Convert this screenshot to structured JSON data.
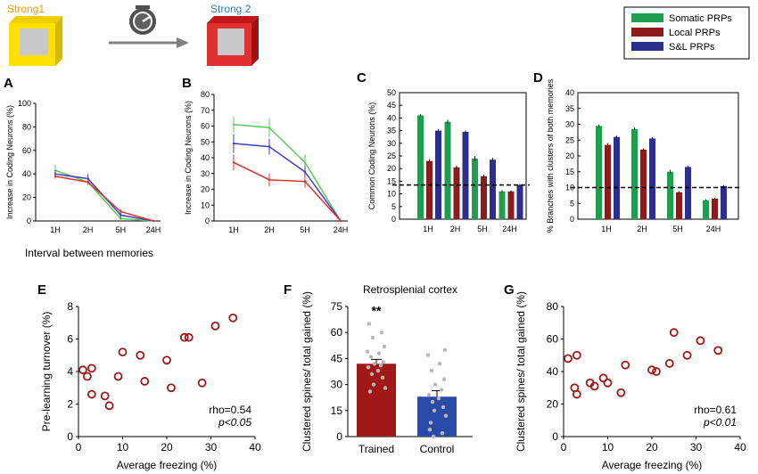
{
  "header": {
    "strong1_label": "Strong1",
    "strong2_label": "Strong 2",
    "clock_icon": "clock-icon",
    "strong1_color": "#e8a000",
    "strong2_color": "#2a7fc0"
  },
  "legend": {
    "items": [
      {
        "label": "Somatic PRPs",
        "color": "#1e9e4e"
      },
      {
        "label": "Local PRPs",
        "color": "#8c1c1c"
      },
      {
        "label": "S&L PRPs",
        "color": "#2b2e8c"
      }
    ]
  },
  "colors": {
    "green": "#5cc85c",
    "blue": "#4040c0",
    "red": "#e03030",
    "dark_red": "#a01818",
    "bar_blue": "#2a4aa8"
  },
  "chart_data": [
    {
      "panel": "A",
      "type": "line",
      "ylabel": "Increase in Coding Neurons (%)",
      "xlabel": "Interval between memories",
      "categories": [
        "1H",
        "2H",
        "5H",
        "24H"
      ],
      "yticks": [
        0,
        20,
        40,
        60,
        80,
        100
      ],
      "ylim": [
        0,
        100
      ],
      "series": [
        {
          "name": "green",
          "values": [
            43,
            33,
            2,
            0
          ],
          "errors": [
            5,
            3,
            2,
            0
          ]
        },
        {
          "name": "blue",
          "values": [
            40,
            36,
            5,
            0
          ],
          "errors": [
            3,
            4,
            3,
            0
          ]
        },
        {
          "name": "red",
          "values": [
            38,
            33,
            8,
            0
          ],
          "errors": [
            2,
            2,
            2,
            0
          ]
        }
      ]
    },
    {
      "panel": "B",
      "type": "line",
      "ylabel": "Increase in Coding Neurons (%)",
      "categories": [
        "1H",
        "2H",
        "5H",
        "24H"
      ],
      "yticks": [
        0,
        10,
        20,
        30,
        40,
        50,
        60,
        70,
        80
      ],
      "ylim": [
        0,
        80
      ],
      "series": [
        {
          "name": "green",
          "values": [
            61,
            59,
            37,
            0
          ],
          "errors": [
            5,
            6,
            5,
            0
          ]
        },
        {
          "name": "blue",
          "values": [
            49,
            47,
            31,
            0
          ],
          "errors": [
            6,
            5,
            4,
            0
          ]
        },
        {
          "name": "red",
          "values": [
            37,
            26,
            25,
            0
          ],
          "errors": [
            5,
            4,
            4,
            0
          ]
        }
      ]
    },
    {
      "panel": "C",
      "type": "bar",
      "ylabel": "Common Coding Neurons (%)",
      "categories": [
        "1H",
        "2H",
        "5H",
        "24H"
      ],
      "yticks": [
        0,
        5,
        10,
        15,
        20,
        25,
        30,
        35,
        40,
        45,
        50
      ],
      "ylim": [
        0,
        50
      ],
      "dashed_line": 13.5,
      "series": [
        {
          "name": "Somatic PRPs",
          "values": [
            41,
            38.5,
            24,
            11
          ],
          "errors": [
            0.5,
            0.8,
            1,
            0.5
          ]
        },
        {
          "name": "Local PRPs",
          "values": [
            23,
            20.5,
            17,
            11
          ],
          "errors": [
            0.7,
            0.8,
            0.7,
            0.4
          ]
        },
        {
          "name": "S&L PRPs",
          "values": [
            35,
            34.5,
            23.5,
            13.5
          ],
          "errors": [
            0.5,
            0.6,
            0.8,
            0.4
          ]
        }
      ]
    },
    {
      "panel": "D",
      "type": "bar",
      "ylabel": "% Branches with clusters of both memories",
      "categories": [
        "1H",
        "2H",
        "5H",
        "24H"
      ],
      "yticks": [
        0,
        5,
        10,
        15,
        20,
        25,
        30,
        35,
        40
      ],
      "ylim": [
        0,
        40
      ],
      "dashed_line": 10,
      "series": [
        {
          "name": "Somatic PRPs",
          "values": [
            29.5,
            28.5,
            15,
            6
          ],
          "errors": [
            0.4,
            0.5,
            0.6,
            0.3
          ]
        },
        {
          "name": "Local PRPs",
          "values": [
            23.5,
            22,
            8.5,
            6.5
          ],
          "errors": [
            0.4,
            0.4,
            0.4,
            0.3
          ]
        },
        {
          "name": "S&L PRPs",
          "values": [
            26,
            25.5,
            16.5,
            10.5
          ],
          "errors": [
            0.4,
            0.4,
            0.4,
            0.3
          ]
        }
      ]
    },
    {
      "panel": "E",
      "type": "scatter",
      "ylabel": "Pre-learning turnover (%)",
      "xlabel": "Average freezing (%)",
      "xticks": [
        0,
        10,
        20,
        30,
        40
      ],
      "xlim": [
        0,
        40
      ],
      "yticks": [
        0,
        2,
        4,
        6,
        8
      ],
      "ylim": [
        0,
        8
      ],
      "points": [
        [
          1,
          4.1
        ],
        [
          2,
          3.7
        ],
        [
          3,
          4.2
        ],
        [
          3,
          2.6
        ],
        [
          6,
          2.5
        ],
        [
          7,
          1.9
        ],
        [
          9,
          3.7
        ],
        [
          10,
          5.2
        ],
        [
          14,
          5.0
        ],
        [
          15,
          3.4
        ],
        [
          20,
          4.7
        ],
        [
          21,
          3.0
        ],
        [
          24,
          6.1
        ],
        [
          25,
          6.1
        ],
        [
          28,
          3.3
        ],
        [
          31,
          6.8
        ],
        [
          35,
          7.3
        ]
      ],
      "stat_rho": "rho=0.54",
      "stat_p": "p<0.05"
    },
    {
      "panel": "F",
      "type": "bar",
      "title": "Retrosplenial cortex",
      "ylabel": "Clustered spines/ total gained (%)",
      "categories": [
        "Trained",
        "Control"
      ],
      "yticks": [
        0,
        15,
        30,
        45,
        60,
        75
      ],
      "ylim": [
        0,
        75
      ],
      "values": [
        42,
        23
      ],
      "errors": [
        2.5,
        3.5
      ],
      "significance": "**",
      "dots_trained": [
        65,
        60,
        57,
        52,
        49,
        48,
        46,
        43,
        42,
        41,
        40,
        38,
        36,
        34,
        30,
        28,
        26
      ],
      "dots_control": [
        50,
        47,
        42,
        38,
        33,
        30,
        27,
        24,
        22,
        20,
        17,
        15,
        12,
        8,
        4,
        2,
        0
      ]
    },
    {
      "panel": "G",
      "type": "scatter",
      "ylabel": "Clustered spines/ total gained (%)",
      "xlabel": "Average freezing (%)",
      "xticks": [
        0,
        10,
        20,
        30,
        40
      ],
      "xlim": [
        0,
        40
      ],
      "yticks": [
        0,
        20,
        40,
        60,
        80
      ],
      "ylim": [
        0,
        80
      ],
      "points": [
        [
          1,
          48
        ],
        [
          2.5,
          30
        ],
        [
          3,
          26
        ],
        [
          3,
          50
        ],
        [
          6,
          33
        ],
        [
          7,
          31
        ],
        [
          9,
          36
        ],
        [
          10,
          33
        ],
        [
          13,
          27
        ],
        [
          14,
          44
        ],
        [
          20,
          41
        ],
        [
          21,
          40
        ],
        [
          24,
          45
        ],
        [
          25,
          64
        ],
        [
          28,
          50
        ],
        [
          31,
          59
        ],
        [
          35,
          53
        ]
      ],
      "stat_rho": "rho=0.61",
      "stat_p": "p<0.01"
    }
  ]
}
